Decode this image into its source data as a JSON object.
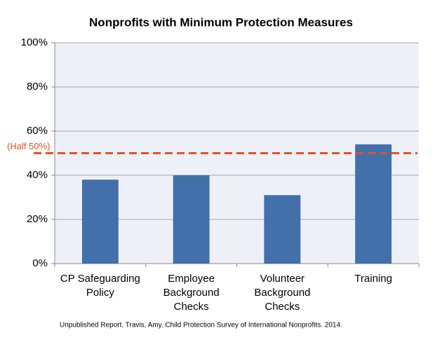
{
  "chart_data": {
    "type": "bar",
    "title": "Nonprofits with Minimum Protection Measures",
    "categories": [
      "CP Safeguarding Policy",
      "Employee Background Checks",
      "Volunteer Background Checks",
      "Training"
    ],
    "values": [
      38,
      40,
      31,
      54
    ],
    "color": "#4170aa",
    "ylim": [
      0,
      100
    ],
    "yticks": [
      {
        "value": 0,
        "label": "0%"
      },
      {
        "value": 20,
        "label": "20%"
      },
      {
        "value": 40,
        "label": "40%"
      },
      {
        "value": 60,
        "label": "60%"
      },
      {
        "value": 80,
        "label": "80%"
      },
      {
        "value": 100,
        "label": "100%"
      }
    ],
    "grid": true,
    "reference_line": {
      "value": 50,
      "label": "(Half 50%)",
      "color": "#e8501f"
    },
    "source": "Unpublished Report. Travis, Amy. Child Protection Survey of International Nonprofits. 2014."
  }
}
